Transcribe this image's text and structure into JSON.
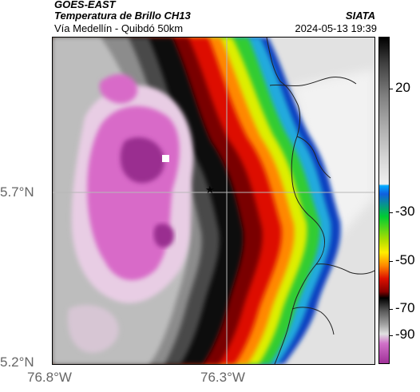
{
  "header": {
    "satellite": "GOES-EAST",
    "product": "Temperatura de Brillo CH13",
    "region": "Vía Medellín - Quibdó 50km",
    "organization": "SIATA",
    "timestamp": "2024-05-13 19:39"
  },
  "axes": {
    "lat_labels": [
      "5.7°N",
      "5.2°N"
    ],
    "lon_labels": [
      "76.8°W",
      "76.3°W"
    ]
  },
  "colorbar": {
    "ticks": [
      "20",
      "-30",
      "-50",
      "-70",
      "-90"
    ]
  },
  "marker": {
    "symbol": "★"
  },
  "colors": {
    "cold_magenta": "#cc55bb",
    "gray": "#9a9a9a",
    "red": "#dd1100",
    "yellow": "#ffee00",
    "green": "#33cc33",
    "blue": "#0044cc",
    "warm_light": "#e6e6e6"
  }
}
